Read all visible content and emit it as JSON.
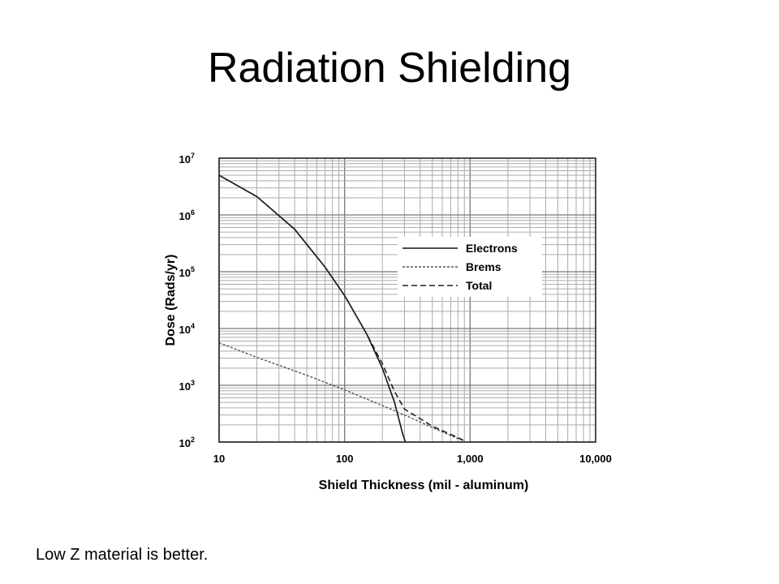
{
  "slide": {
    "title": "Radiation Shielding",
    "caption": "Low Z material is better."
  },
  "chart_data": {
    "type": "line",
    "title": "",
    "xlabel": "Shield Thickness (mil - aluminum)",
    "ylabel": "Dose (Rads/yr)",
    "x_scale": "log",
    "y_scale": "log",
    "xlim": [
      10,
      10000
    ],
    "ylim": [
      100,
      10000000
    ],
    "x_ticks": [
      10,
      100,
      1000,
      10000
    ],
    "x_tick_labels": [
      "10",
      "100",
      "1,000",
      "10,000"
    ],
    "y_ticks": [
      100,
      1000,
      10000,
      100000,
      1000000,
      10000000
    ],
    "y_tick_labels": [
      {
        "base": "10",
        "exp": "2"
      },
      {
        "base": "10",
        "exp": "3"
      },
      {
        "base": "10",
        "exp": "4"
      },
      {
        "base": "10",
        "exp": "5"
      },
      {
        "base": "10",
        "exp": "6"
      },
      {
        "base": "10",
        "exp": "7"
      }
    ],
    "grid": true,
    "legend_position": "upper-right",
    "series": [
      {
        "name": "Electrons",
        "style": "solid",
        "points": [
          [
            10,
            5000000
          ],
          [
            20,
            2100000
          ],
          [
            40,
            560000
          ],
          [
            70,
            120000
          ],
          [
            100,
            38000
          ],
          [
            150,
            8000
          ],
          [
            200,
            2000
          ],
          [
            250,
            500
          ],
          [
            290,
            140
          ],
          [
            305,
            100
          ]
        ]
      },
      {
        "name": "Brems",
        "style": "dashed-fine",
        "points": [
          [
            10,
            5600
          ],
          [
            20,
            3100
          ],
          [
            50,
            1500
          ],
          [
            100,
            830
          ],
          [
            200,
            440
          ],
          [
            300,
            300
          ],
          [
            500,
            180
          ],
          [
            800,
            115
          ],
          [
            900,
            105
          ]
        ]
      },
      {
        "name": "Total",
        "style": "dashed",
        "points": [
          [
            10,
            5000000
          ],
          [
            20,
            2100000
          ],
          [
            40,
            560000
          ],
          [
            70,
            120000
          ],
          [
            100,
            38000
          ],
          [
            150,
            8000
          ],
          [
            200,
            2400
          ],
          [
            250,
            780
          ],
          [
            300,
            380
          ],
          [
            500,
            190
          ],
          [
            800,
            120
          ],
          [
            900,
            105
          ]
        ]
      }
    ]
  }
}
